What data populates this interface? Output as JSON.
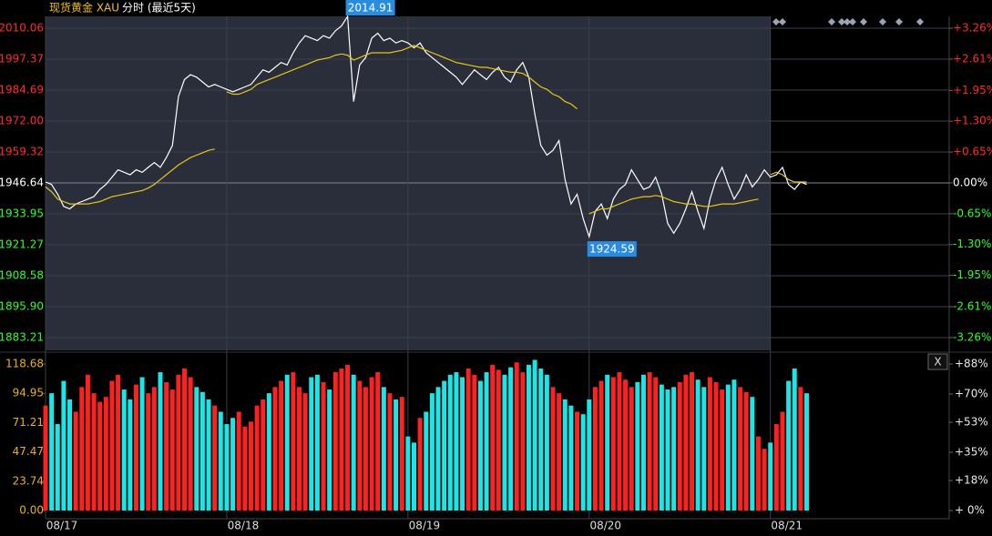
{
  "chart_data": [
    {
      "type": "line",
      "title": "现货黄金 XAU",
      "subtitle": "分时 (最近5天)",
      "xlim": [
        0,
        149.6
      ],
      "xticks": [
        {
          "value": 0,
          "label": "08/17"
        },
        {
          "value": 30,
          "label": "08/18"
        },
        {
          "value": 60,
          "label": "08/19"
        },
        {
          "value": 90,
          "label": "08/20"
        },
        {
          "value": 120,
          "label": "08/21"
        }
      ],
      "ylim": [
        1877.99,
        2014.91
      ],
      "yticks": [
        2010.06,
        1997.37,
        1984.69,
        {
          "value": 1972,
          "label": "1972.00"
        },
        1959.32,
        1946.64,
        1933.95,
        1921.27,
        1908.58,
        {
          "value": 1895.9,
          "label": "1895.90"
        },
        1883.21
      ],
      "y2lim": [
        -3.53,
        3.51
      ],
      "y2ticks": [
        {
          "value": 3.26,
          "label": "+3.26%"
        },
        {
          "value": 2.61,
          "label": "+2.61%"
        },
        {
          "value": 1.95,
          "label": "+1.95%"
        },
        {
          "value": 1.3,
          "label": "+1.30%"
        },
        {
          "value": 0.65,
          "label": "+0.65%"
        },
        {
          "value": 0,
          "label": "0.00%"
        },
        {
          "value": -0.65,
          "label": "-0.65%"
        },
        {
          "value": -1.3,
          "label": "-1.30%"
        },
        {
          "value": -1.95,
          "label": "-1.95%"
        },
        {
          "value": -2.61,
          "label": "-2.61%"
        },
        {
          "value": -3.26,
          "label": "-3.26%"
        }
      ],
      "series": [
        {
          "color": "#ffffff",
          "values": [
            1947,
            1946,
            1942,
            1937,
            1936,
            1938,
            1939,
            1940,
            1941,
            1944,
            1946,
            1949,
            1952,
            1951,
            1950,
            1952,
            1951,
            1953,
            1955,
            1953,
            1957,
            1962,
            1982,
            1989,
            1991,
            1990,
            1988,
            1986,
            1987,
            1986,
            1985,
            1984,
            1985,
            1986,
            1987,
            1990,
            1993,
            1992,
            1994,
            1996,
            1995,
            2000,
            2004,
            2007,
            2006,
            2005,
            2007,
            2006,
            2009,
            2011,
            2014.91,
            1980,
            1995,
            1998,
            2006,
            2008,
            2005,
            2006,
            2004,
            2005,
            2004,
            2002,
            2004,
            2000,
            1998,
            1996,
            1994,
            1992,
            1990,
            1987,
            1990,
            1993,
            1991,
            1989,
            1992,
            1994,
            1990,
            1988,
            1993,
            1996,
            1990,
            1975,
            1962,
            1958,
            1960,
            1964,
            1948,
            1938,
            1942,
            1932,
            1924.59,
            1935,
            1938,
            1932,
            1940,
            1944,
            1946,
            1952,
            1948,
            1944,
            1945,
            1949,
            1942,
            1930,
            1926,
            1930,
            1936,
            1943,
            1935,
            1928,
            1940,
            1948,
            1953,
            1946,
            1940,
            1944,
            1950,
            1945,
            1948,
            1952,
            1949,
            1950,
            1953,
            1946,
            1944,
            1947,
            1946
          ]
        },
        {
          "color": "#e6c619",
          "values": [
            1945,
            1943,
            1940,
            1939,
            1938,
            1938,
            1938,
            1938,
            1938.5,
            1939,
            1940,
            1941,
            1941.5,
            1942,
            1942.5,
            1943,
            1943.5,
            1944.5,
            1946,
            1948,
            1950,
            1952,
            1954,
            1955.5,
            1957,
            1958,
            1959,
            1960,
            1960.5,
            null,
            1984,
            1983,
            1983,
            1984,
            1985,
            1987,
            1988,
            1989,
            1990,
            1991,
            1992,
            1993,
            1994,
            1995,
            1996,
            1997,
            1997.5,
            1998,
            1999,
            1999.5,
            1999,
            1997,
            1998,
            1999,
            2000,
            2000,
            2000,
            2000,
            2000.5,
            2001,
            2002,
            2003,
            2002,
            2001,
            2000,
            1999,
            1998,
            1997,
            1996,
            1995.5,
            1995,
            1994.5,
            1994,
            1994,
            1993.5,
            1993,
            1992.5,
            1992,
            1992,
            1991.5,
            1990,
            1988,
            1986,
            1985,
            1983,
            1982,
            1980,
            1979,
            1977,
            null,
            1934,
            1935,
            1936,
            1936,
            1937,
            1938,
            1939,
            1940,
            1940.5,
            1941,
            1941,
            1941.5,
            1941,
            1940,
            1939,
            1938.5,
            1938,
            1938,
            1937.5,
            1937,
            1937,
            1937.5,
            1938,
            1938,
            1938,
            1938.5,
            1939,
            1939.5,
            1940,
            null,
            1950,
            1951,
            1950,
            1948,
            1947,
            1947,
            1947
          ]
        }
      ],
      "annotations": [
        {
          "x": 50,
          "y": 2014.91,
          "text": "2014.91",
          "color": "#2a8ce0"
        },
        {
          "x": 90,
          "y": 1924.59,
          "text": "1924.59",
          "color": "#2a8ce0"
        }
      ]
    },
    {
      "type": "bar",
      "ylim": [
        0,
        126.05
      ],
      "yticks": [
        {
          "value": 0,
          "label": "0.00"
        },
        23.74,
        47.47,
        71.21,
        94.95,
        118.68
      ],
      "y2lim": [
        0,
        93.47
      ],
      "y2ticks": [
        {
          "value": 0,
          "label": "+ 0%"
        },
        {
          "value": 18,
          "label": "+18%"
        },
        {
          "value": 35,
          "label": "+35%"
        },
        {
          "value": 53,
          "label": "+53%"
        },
        {
          "value": 70,
          "label": "+70%"
        },
        {
          "value": 88,
          "label": "+88%"
        }
      ],
      "up_color": "#ff2020",
      "down_color": "#19e6e6",
      "button": "X",
      "values": [
        85,
        95,
        70,
        105,
        90,
        80,
        100,
        110,
        95,
        88,
        92,
        105,
        110,
        98,
        90,
        102,
        108,
        95,
        100,
        112,
        104,
        98,
        110,
        115,
        108,
        100,
        96,
        90,
        85,
        80,
        70,
        75,
        80,
        68,
        72,
        85,
        90,
        95,
        100,
        105,
        110,
        112,
        100,
        95,
        108,
        110,
        104,
        98,
        112,
        115,
        118,
        110,
        105,
        100,
        108,
        112,
        100,
        95,
        90,
        92,
        60,
        55,
        75,
        80,
        95,
        100,
        105,
        110,
        112,
        108,
        115,
        110,
        105,
        112,
        118,
        114,
        110,
        116,
        120,
        112,
        118,
        122,
        115,
        110,
        100,
        95,
        90,
        85,
        80,
        78,
        90,
        100,
        105,
        110,
        108,
        112,
        106,
        100,
        104,
        110,
        112,
        108,
        102,
        98,
        100,
        104,
        110,
        112,
        106,
        100,
        108,
        104,
        98,
        102,
        106,
        100,
        96,
        92,
        60,
        50,
        55,
        70,
        80,
        105,
        115,
        100,
        95
      ]
    }
  ]
}
